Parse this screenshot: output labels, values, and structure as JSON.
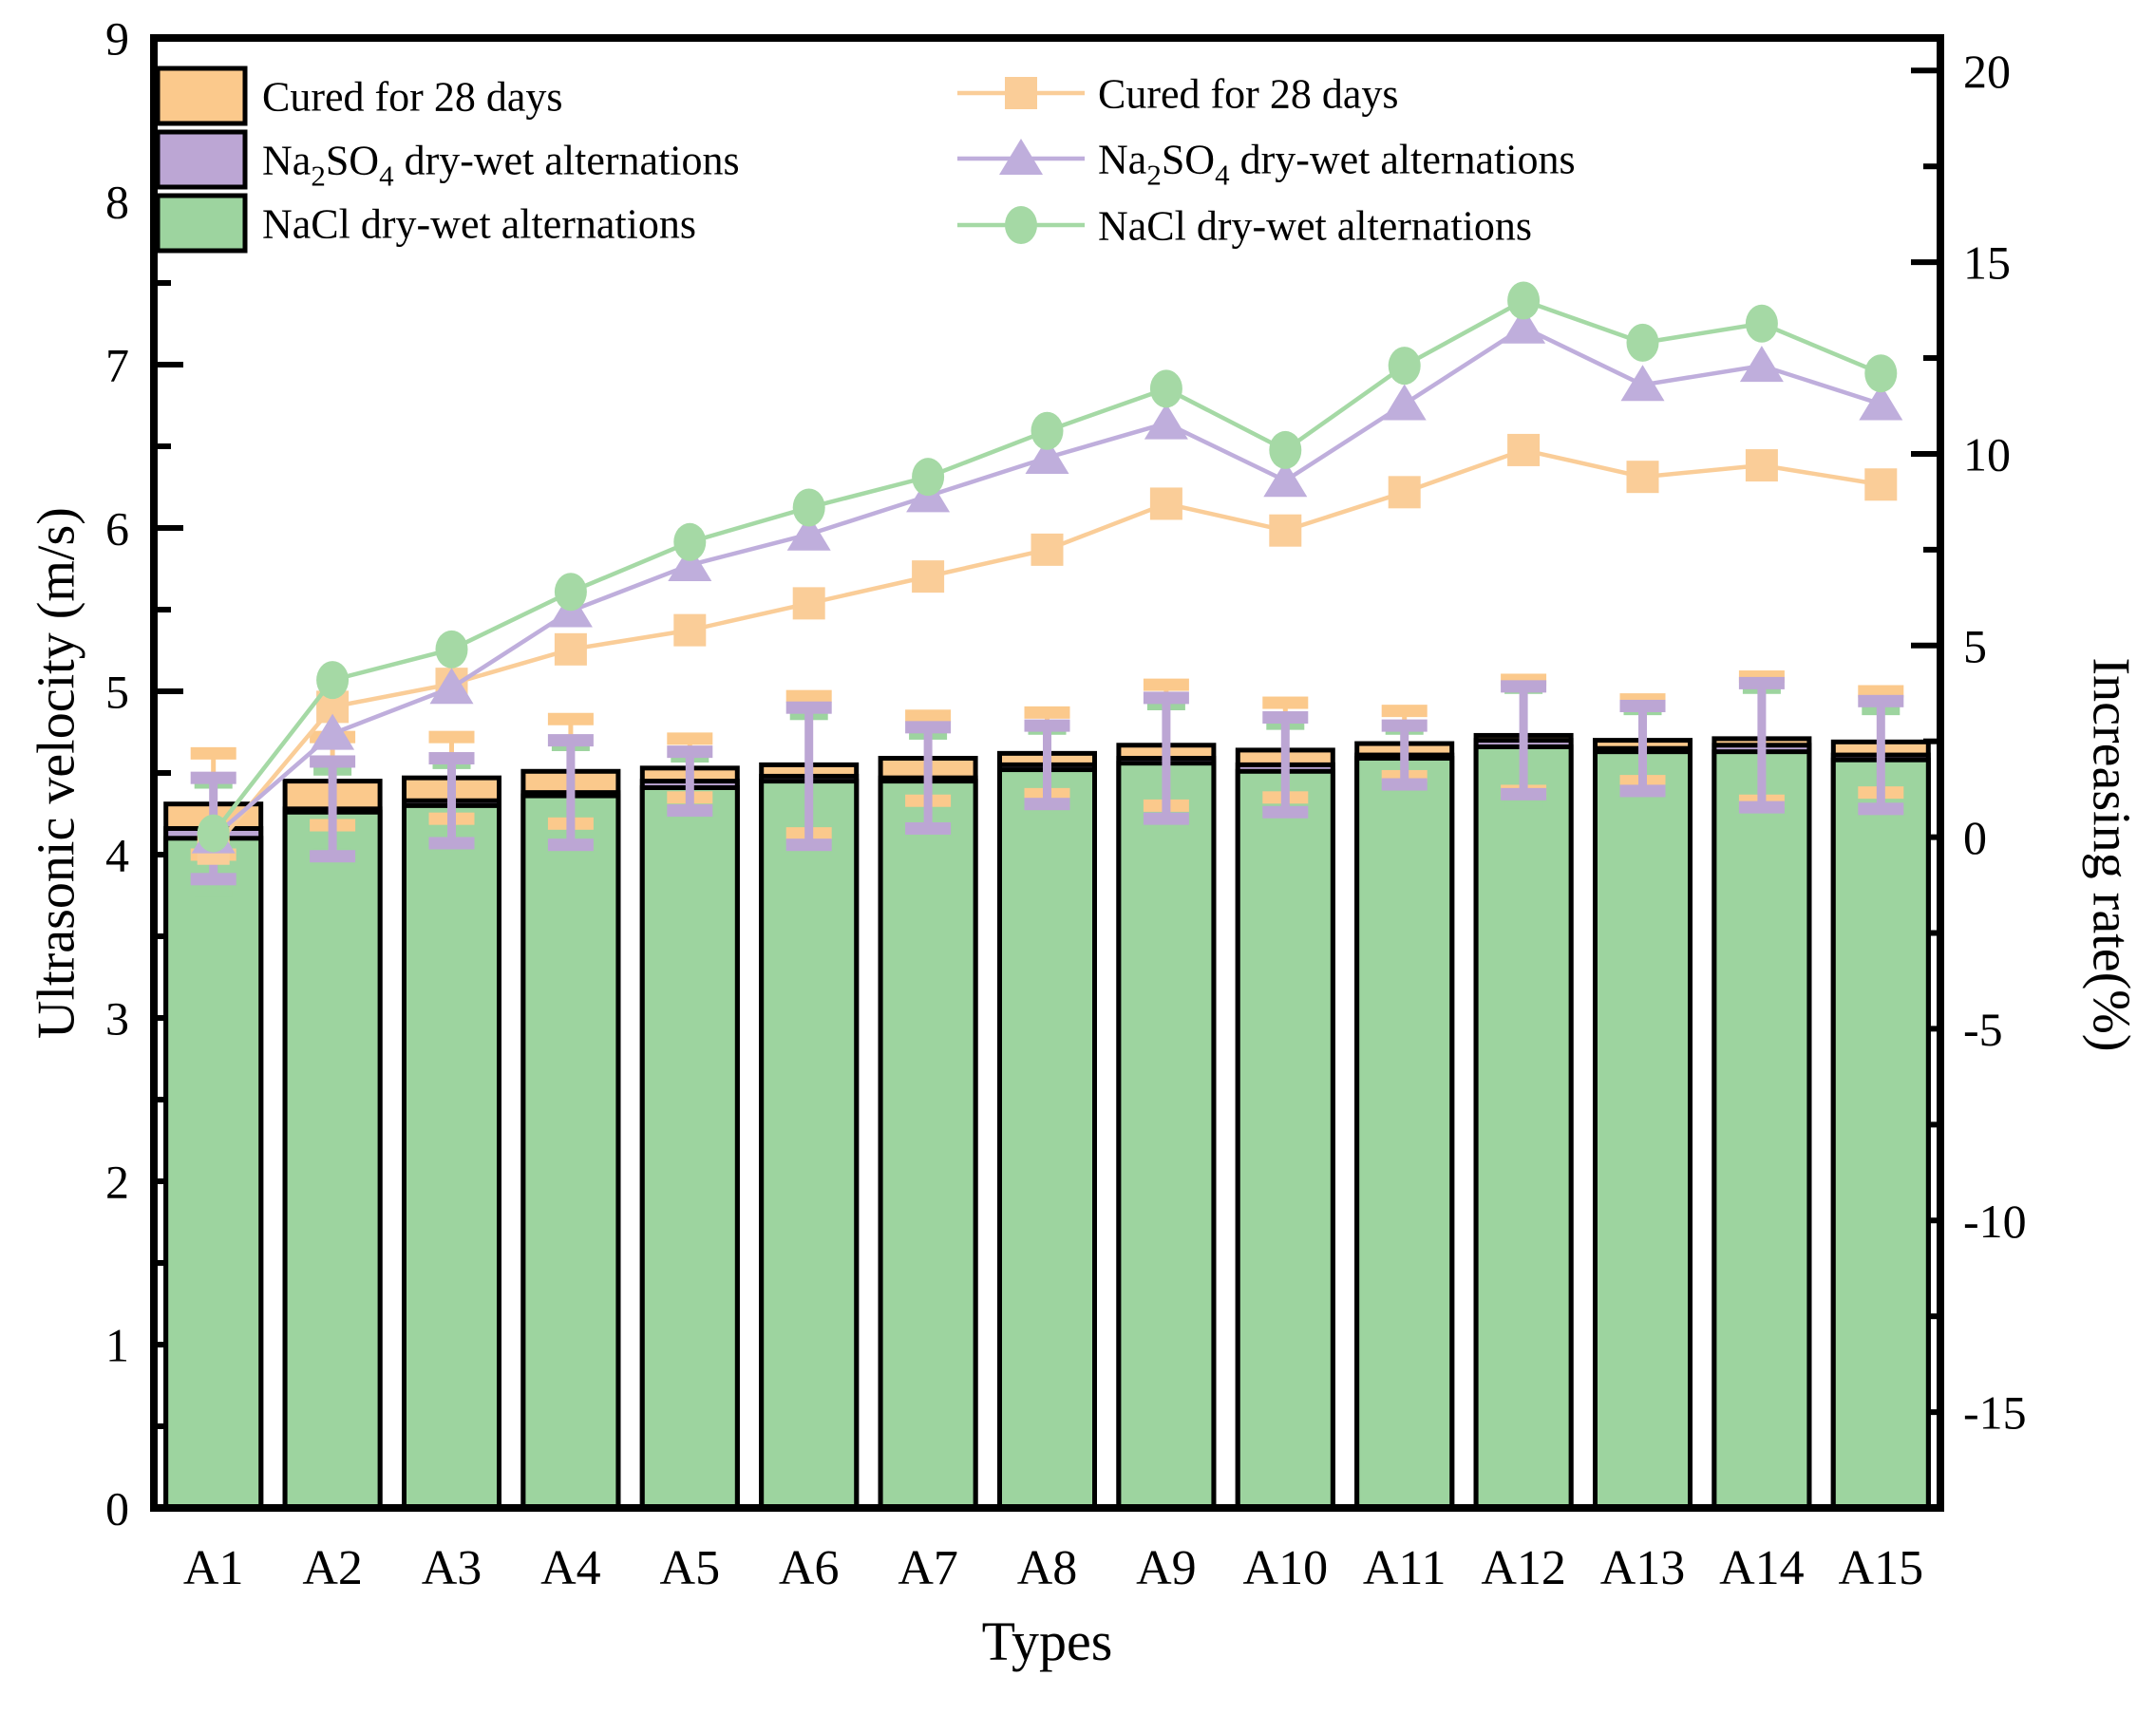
{
  "figure": {
    "background": "#ffffff",
    "x_axis_title": "Types",
    "left_axis_title": "Ultrasonic velocity (m/s)",
    "right_axis_title": "Increasing rate(%)"
  },
  "chart_data": {
    "type": "bar+line",
    "categories": [
      "A1",
      "A2",
      "A3",
      "A4",
      "A5",
      "A6",
      "A7",
      "A8",
      "A9",
      "A10",
      "A11",
      "A12",
      "A13",
      "A14",
      "A15"
    ],
    "x_axis": {
      "label": "Types",
      "tick_labels": [
        "A1",
        "A2",
        "A3",
        "A4",
        "A5",
        "A6",
        "A7",
        "A8",
        "A9",
        "A10",
        "A11",
        "A12",
        "A13",
        "A14",
        "A15"
      ]
    },
    "left_axis": {
      "label": "Ultrasonic velocity (m/s)",
      "min": 0,
      "max": 9,
      "major_step": 1,
      "minor_step": 0.5,
      "tick_labels": [
        "0",
        "1",
        "2",
        "3",
        "4",
        "5",
        "6",
        "7",
        "8",
        "9"
      ]
    },
    "right_axis": {
      "label": "Increasing rate(%)",
      "min": -17.5,
      "max": 20.85,
      "major_ticks": [
        -15,
        -10,
        -5,
        0,
        5,
        10,
        15,
        20
      ],
      "minor_ticks": [
        -12.5,
        -7.5,
        -2.5,
        2.5,
        7.5,
        12.5,
        17.5
      ],
      "tick_labels": [
        "-15",
        "-10",
        "-5",
        "0",
        "5",
        "10",
        "15",
        "20"
      ]
    },
    "grid": "off",
    "legend_position": {
      "bars": "top-left-inside",
      "lines": "top-center-inside"
    },
    "bar_series": [
      {
        "name": "Cured for 28 days",
        "label_segments": [
          {
            "t": "Cured for 28 days"
          }
        ],
        "color": "#FBC98C",
        "values": [
          4.31,
          4.45,
          4.47,
          4.51,
          4.53,
          4.55,
          4.59,
          4.62,
          4.67,
          4.64,
          4.68,
          4.73,
          4.7,
          4.71,
          4.69
        ],
        "errors": [
          0.31,
          0.27,
          0.25,
          0.32,
          0.18,
          0.42,
          0.26,
          0.25,
          0.37,
          0.29,
          0.2,
          0.34,
          0.25,
          0.38,
          0.31
        ]
      },
      {
        "name": "Na2SO4 dry-wet alternations",
        "label_segments": [
          {
            "t": "Na"
          },
          {
            "t": "2",
            "sub": true
          },
          {
            "t": "SO"
          },
          {
            "t": "4",
            "sub": true
          },
          {
            "t": " dry-wet alternations"
          }
        ],
        "color": "#BCA6D4",
        "values": [
          4.16,
          4.28,
          4.33,
          4.38,
          4.45,
          4.48,
          4.47,
          4.55,
          4.59,
          4.55,
          4.61,
          4.7,
          4.65,
          4.67,
          4.61
        ],
        "errors": [
          0.31,
          0.29,
          0.26,
          0.32,
          0.18,
          0.42,
          0.31,
          0.24,
          0.37,
          0.29,
          0.18,
          0.33,
          0.26,
          0.38,
          0.33
        ]
      },
      {
        "name": "NaCl dry-wet alternations",
        "label_segments": [
          {
            "t": "NaCl dry-wet alternations"
          }
        ],
        "color": "#9DD49F",
        "values": [
          4.1,
          4.26,
          4.3,
          4.36,
          4.41,
          4.45,
          4.45,
          4.52,
          4.56,
          4.51,
          4.59,
          4.66,
          4.63,
          4.63,
          4.58
        ],
        "errors": [
          0.33,
          0.25,
          0.25,
          0.3,
          0.18,
          0.4,
          0.28,
          0.24,
          0.35,
          0.28,
          0.17,
          0.35,
          0.25,
          0.38,
          0.3
        ]
      }
    ],
    "line_series": [
      {
        "name": "Cured for 28 days",
        "label_segments": [
          {
            "t": "Cured for 28 days"
          }
        ],
        "marker": "square",
        "color": "#FACD98",
        "values": [
          -0.3,
          3.4,
          4.0,
          4.9,
          5.4,
          6.1,
          6.8,
          7.5,
          8.7,
          8.0,
          9.0,
          10.1,
          9.4,
          9.7,
          9.2
        ]
      },
      {
        "name": "Na2SO4 dry-wet alternations",
        "label_segments": [
          {
            "t": "Na"
          },
          {
            "t": "2",
            "sub": true
          },
          {
            "t": "SO"
          },
          {
            "t": "4",
            "sub": true
          },
          {
            "t": " dry-wet alternations"
          }
        ],
        "marker": "triangle",
        "color": "#BFAEDC",
        "values": [
          0.0,
          2.7,
          3.9,
          5.9,
          7.1,
          7.9,
          8.9,
          9.9,
          10.8,
          9.3,
          11.3,
          13.3,
          11.8,
          12.3,
          11.3
        ]
      },
      {
        "name": "NaCl dry-wet alternations",
        "label_segments": [
          {
            "t": "NaCl dry-wet alternations"
          }
        ],
        "marker": "circle",
        "color": "#A5D9A5",
        "values": [
          0.1,
          4.1,
          4.9,
          6.4,
          7.7,
          8.6,
          9.4,
          10.6,
          11.7,
          10.1,
          12.3,
          14.0,
          12.9,
          13.4,
          12.1
        ]
      }
    ]
  },
  "style": {
    "frame_color": "#000000",
    "bar_outline": "#000000",
    "tick_color": "#000000",
    "text_color": "#000000"
  }
}
